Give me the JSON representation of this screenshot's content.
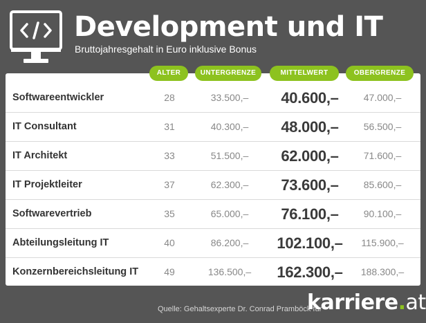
{
  "header": {
    "title": "Development und IT",
    "subtitle": "Bruttojahresgehalt in Euro inklusive Bonus",
    "icon": "code-monitor-icon"
  },
  "colors": {
    "background": "#555555",
    "accent": "#8dc21f",
    "panel": "#ffffff"
  },
  "chart_data": {
    "type": "table",
    "columns": [
      "ALTER",
      "UNTERGRENZE",
      "MITTELWERT",
      "OBERGRENZE"
    ],
    "rows": [
      {
        "label": "Softwareentwickler",
        "alter": "28",
        "untergrenze": "33.500,–",
        "mittelwert": "40.600,–",
        "obergrenze": "47.000,–"
      },
      {
        "label": "IT Consultant",
        "alter": "31",
        "untergrenze": "40.300,–",
        "mittelwert": "48.000,–",
        "obergrenze": "56.500,–"
      },
      {
        "label": "IT Architekt",
        "alter": "33",
        "untergrenze": "51.500,–",
        "mittelwert": "62.000,–",
        "obergrenze": "71.600,–"
      },
      {
        "label": "IT Projektleiter",
        "alter": "37",
        "untergrenze": "62.300,–",
        "mittelwert": "73.600,–",
        "obergrenze": "85.600,–"
      },
      {
        "label": "Softwarevertrieb",
        "alter": "35",
        "untergrenze": "65.000,–",
        "mittelwert": "76.100,–",
        "obergrenze": "90.100,–"
      },
      {
        "label": "Abteilungsleitung IT",
        "alter": "40",
        "untergrenze": "86.200,–",
        "mittelwert": "102.100,–",
        "obergrenze": "115.900,–"
      },
      {
        "label": "Konzernbereichsleitung IT",
        "alter": "49",
        "untergrenze": "136.500,–",
        "mittelwert": "162.300,–",
        "obergrenze": "188.300,–"
      }
    ]
  },
  "footer": {
    "source": "Quelle: Gehaltsexperte Dr. Conrad Pramböck für",
    "logo_main": "karriere",
    "logo_dot": ".",
    "logo_tld": "at"
  }
}
